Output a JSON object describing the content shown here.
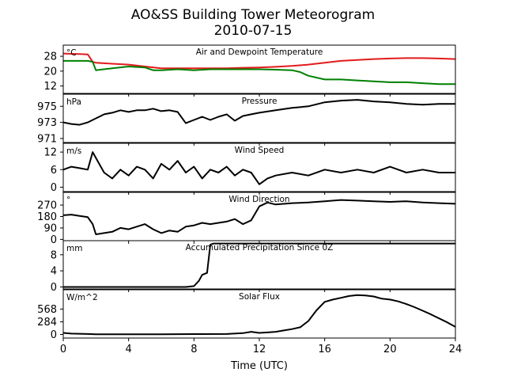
{
  "chart_data": {
    "type": "line",
    "title": "AO&SS Building Tower Meteorogram",
    "subtitle": "2010-07-15",
    "xlabel": "Time (UTC)",
    "x_ticks": [
      0,
      4,
      8,
      12,
      16,
      20,
      24
    ],
    "xlim": [
      0,
      24
    ],
    "panels": [
      {
        "label": "Air and Dewpoint Temperature",
        "unit": "°C",
        "ylim": [
          8,
          34
        ],
        "y_ticks": [
          12,
          20,
          28
        ],
        "series": [
          {
            "color": "#e31a1c",
            "x": [
              0,
              0.5,
              1,
              1.5,
              1.8,
              2,
              3,
              4,
              5,
              6,
              7,
              8,
              9,
              10,
              11,
              12,
              13,
              14,
              15,
              16,
              17,
              18,
              19,
              20,
              21,
              22,
              23,
              24
            ],
            "y": [
              29.5,
              29.3,
              29.2,
              29,
              25,
              24.5,
              24,
              23.5,
              22.5,
              21.5,
              21.5,
              21.5,
              21.5,
              21.5,
              21.8,
              22,
              22.3,
              22.8,
              23.5,
              24.5,
              25.5,
              26,
              26.5,
              26.8,
              27,
              27,
              26.8,
              26.5
            ]
          },
          {
            "color": "#008000",
            "x": [
              0,
              0.5,
              1,
              1.5,
              1.8,
              2,
              3,
              4,
              5,
              5.5,
              6,
              7,
              8,
              9,
              10,
              11,
              12,
              13,
              14,
              14.5,
              15,
              16,
              17,
              18,
              19,
              20,
              21,
              22,
              23,
              24
            ],
            "y": [
              25.5,
              25.5,
              25.5,
              25.5,
              25,
              20.5,
              21.5,
              22.5,
              22,
              20.5,
              20.5,
              21,
              20.5,
              21,
              21,
              21,
              21,
              20.8,
              20.5,
              19.5,
              17.5,
              15.5,
              15.5,
              15,
              14.5,
              14,
              14,
              13.5,
              13,
              13
            ]
          }
        ]
      },
      {
        "label": "Pressure",
        "unit": "hPa",
        "ylim": [
          970.5,
          976.5
        ],
        "y_ticks": [
          971,
          973,
          975
        ],
        "series": [
          {
            "color": "#000000",
            "x": [
              0,
              0.5,
              1,
              1.5,
              2,
              2.5,
              3,
              3.5,
              4,
              4.5,
              5,
              5.5,
              6,
              6.5,
              7,
              7.5,
              8,
              8.5,
              9,
              9.5,
              10,
              10.5,
              11,
              11.5,
              12,
              13,
              14,
              15,
              16,
              17,
              18,
              19,
              20,
              21,
              22,
              23,
              24
            ],
            "y": [
              973,
              972.8,
              972.7,
              973,
              973.5,
              974,
              974.2,
              974.5,
              974.3,
              974.5,
              974.5,
              974.7,
              974.4,
              974.5,
              974.3,
              972.9,
              973.3,
              973.7,
              973.3,
              973.7,
              974,
              973.2,
              973.8,
              974,
              974.2,
              974.5,
              974.8,
              975,
              975.5,
              975.7,
              975.8,
              975.6,
              975.5,
              975.3,
              975.2,
              975.3,
              975.3
            ]
          }
        ]
      },
      {
        "label": "Wind Speed",
        "unit": "m/s",
        "ylim": [
          -1.5,
          15
        ],
        "y_ticks": [
          0,
          6,
          12
        ],
        "series": [
          {
            "color": "#000000",
            "x": [
              0,
              0.5,
              1,
              1.5,
              1.8,
              2,
              2.5,
              3,
              3.5,
              4,
              4.5,
              5,
              5.5,
              6,
              6.5,
              7,
              7.5,
              8,
              8.5,
              9,
              9.5,
              10,
              10.5,
              11,
              11.5,
              12,
              12.5,
              13,
              14,
              15,
              16,
              17,
              18,
              19,
              20,
              21,
              22,
              23,
              24
            ],
            "y": [
              6,
              7,
              6.5,
              6,
              12,
              10,
              5,
              3,
              6,
              4,
              7,
              6,
              3,
              8,
              6,
              9,
              5,
              7,
              3,
              6,
              5,
              7,
              4,
              6,
              5,
              1,
              3,
              4,
              5,
              4,
              6,
              5,
              6,
              5,
              7,
              5,
              6,
              5,
              5
            ]
          }
        ]
      },
      {
        "label": "Wind Direction",
        "unit": "°",
        "ylim": [
          -10,
          370
        ],
        "y_ticks": [
          0,
          90,
          180,
          270
        ],
        "series": [
          {
            "color": "#000000",
            "x": [
              0,
              0.5,
              1,
              1.5,
              1.8,
              2,
              2.5,
              3,
              3.5,
              4,
              4.5,
              5,
              5.5,
              6,
              6.5,
              7,
              7.5,
              8,
              8.5,
              9,
              9.5,
              10,
              10.5,
              11,
              11.5,
              12,
              12.5,
              13,
              14,
              15,
              16,
              17,
              18,
              19,
              20,
              21,
              22,
              23,
              24
            ],
            "y": [
              190,
              195,
              185,
              175,
              120,
              40,
              50,
              60,
              90,
              80,
              100,
              120,
              80,
              50,
              70,
              60,
              100,
              110,
              130,
              120,
              130,
              140,
              160,
              120,
              150,
              260,
              290,
              275,
              285,
              290,
              300,
              310,
              305,
              300,
              295,
              300,
              290,
              285,
              280
            ]
          }
        ]
      },
      {
        "label": "Accumulated Precipitation Since 0Z",
        "unit": "mm",
        "ylim": [
          -0.5,
          11.5
        ],
        "y_ticks": [
          0,
          4,
          8
        ],
        "series": [
          {
            "color": "#000000",
            "x": [
              0,
              7.5,
              8,
              8.3,
              8.5,
              8.8,
              9,
              9.2,
              10,
              12,
              16,
              20,
              24
            ],
            "y": [
              0,
              0,
              0.2,
              1.5,
              3,
              3.5,
              10.5,
              10.8,
              10.8,
              10.8,
              10.8,
              10.8,
              10.8
            ]
          }
        ]
      },
      {
        "label": "Solar Flux",
        "unit": "W/m^2",
        "ylim": [
          -80,
          1000
        ],
        "y_ticks": [
          0,
          284,
          568
        ],
        "series": [
          {
            "color": "#000000",
            "x": [
              0,
              0.5,
              1,
              1.5,
              2,
              4,
              6,
              8,
              10,
              11,
              11.5,
              12,
              12.5,
              13,
              13.5,
              14,
              14.5,
              15,
              15.5,
              16,
              16.5,
              17,
              17.5,
              18,
              18.5,
              19,
              19.5,
              20,
              20.5,
              21,
              21.5,
              22,
              22.5,
              23,
              23.5,
              24
            ],
            "y": [
              35,
              20,
              15,
              10,
              5,
              5,
              5,
              8,
              10,
              30,
              60,
              35,
              45,
              60,
              90,
              120,
              160,
              300,
              540,
              730,
              780,
              820,
              860,
              880,
              870,
              850,
              800,
              780,
              740,
              680,
              610,
              530,
              450,
              360,
              270,
              170
            ]
          }
        ]
      }
    ]
  }
}
